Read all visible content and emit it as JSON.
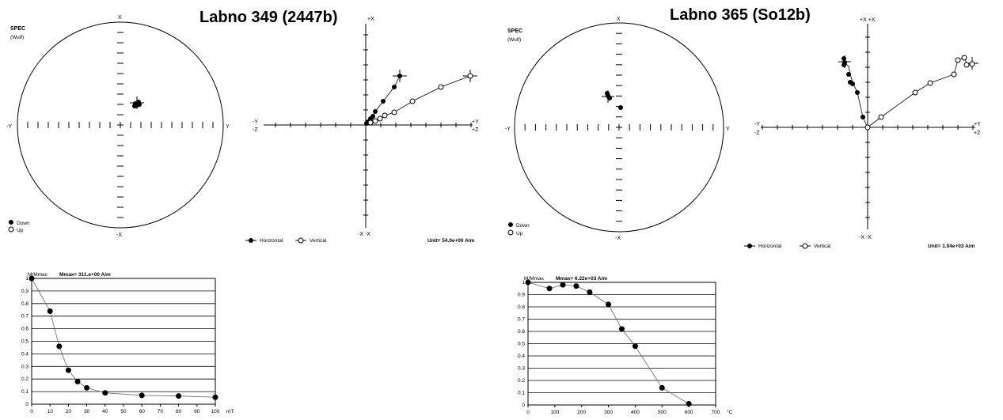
{
  "left_panel": {
    "title": "Labno 349  (2447b)",
    "stereonet": {
      "header": "SPEC",
      "subheader": "(Wulf)",
      "axis_labels": {
        "top": "X",
        "bottom": "-X",
        "left": "-Y",
        "right": "Y"
      },
      "legend": {
        "down": "Down",
        "up": "Up"
      }
    },
    "zijderveld": {
      "axis_labels": {
        "top": "+X",
        "bottom": "-X -X",
        "left": "-Y\n-Z",
        "left_y": "-Y",
        "left_z": "-Z",
        "right_y": "+Y",
        "right_z": "+Z"
      },
      "legend": {
        "horizontal": "Horizontal",
        "vertical": "Vertical"
      },
      "unit": "Unit=  54.0e+00 A/m"
    }
  },
  "right_panel": {
    "title": "Labno 365 (So12b)",
    "stereonet": {
      "header": "SPEC",
      "subheader": "(Wulf)",
      "axis_labels": {
        "top": "X",
        "bottom": "-X",
        "left": "-Y",
        "right": "Y"
      },
      "legend": {
        "down": "Down",
        "up": "Up"
      }
    },
    "zijderveld": {
      "axis_labels": {
        "top": "+X +X",
        "bottom": "-X -X",
        "left_y": "-Y",
        "left_z": "-Z",
        "right_y": "+Y",
        "right_z": "+Z"
      },
      "legend": {
        "horizontal": "Horizontal",
        "vertical": "Vertical"
      },
      "unit": "Unit=  1.04e+03 A/m"
    }
  },
  "chart_data": [
    {
      "type": "line",
      "ylabel": "M/Mmax",
      "title": "Mmax= 311.e+00  A/m",
      "x_unit": "mT",
      "x": [
        0,
        10,
        15,
        20,
        25,
        30,
        40,
        60,
        80,
        100
      ],
      "series": [
        {
          "values": [
            1.0,
            0.74,
            0.46,
            0.27,
            0.18,
            0.13,
            0.09,
            0.07,
            0.065,
            0.055
          ]
        }
      ],
      "xlim": [
        0,
        100
      ],
      "xticks": [
        0,
        10,
        20,
        30,
        40,
        50,
        60,
        70,
        80,
        90,
        100
      ],
      "ylim": [
        0,
        1
      ],
      "yticks": [
        0,
        0.1,
        0.2,
        0.3,
        0.4,
        0.5,
        0.6,
        0.7,
        0.8,
        0.9,
        1
      ],
      "grid": "horizontal"
    },
    {
      "type": "line",
      "ylabel": "M/Mmax",
      "title": "Mmax= 6.22e+03  A/m",
      "x_unit": "°C",
      "x": [
        0,
        80,
        130,
        180,
        230,
        300,
        350,
        400,
        500,
        600
      ],
      "series": [
        {
          "values": [
            1.0,
            0.95,
            0.98,
            0.97,
            0.92,
            0.82,
            0.62,
            0.48,
            0.14,
            0.01
          ]
        }
      ],
      "xlim": [
        0,
        700
      ],
      "xticks": [
        0,
        100,
        200,
        300,
        400,
        500,
        600,
        700
      ],
      "ylim": [
        0,
        1
      ],
      "yticks": [
        0,
        0.1,
        0.2,
        0.3,
        0.4,
        0.5,
        0.6,
        0.7,
        0.8,
        0.9,
        1
      ],
      "grid": "horizontal"
    }
  ]
}
